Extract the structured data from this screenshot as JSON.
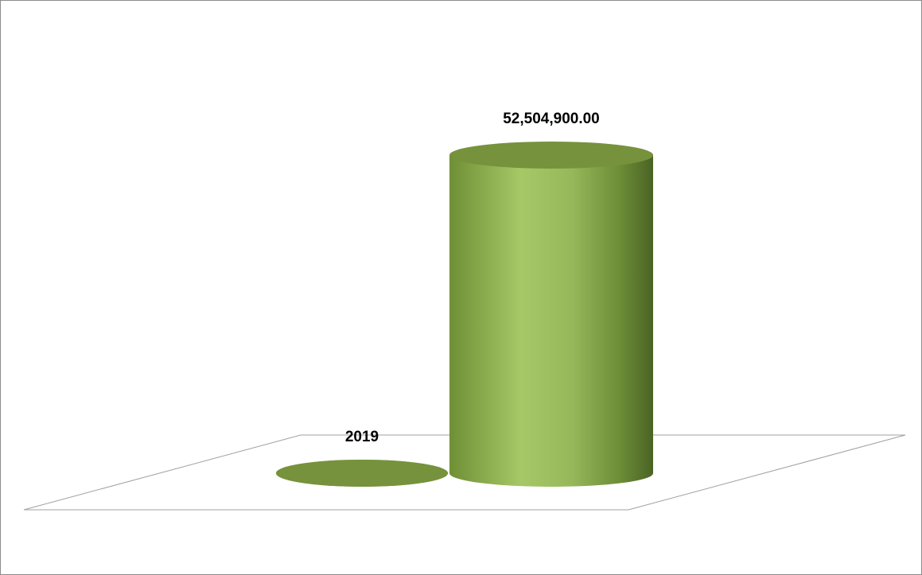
{
  "chart_data": {
    "type": "cylinder",
    "categories": [
      null,
      null
    ],
    "values": [
      2019,
      52504900
    ],
    "value_labels": [
      "2019",
      "52,504,900.00"
    ],
    "color": "#9bbb59"
  }
}
